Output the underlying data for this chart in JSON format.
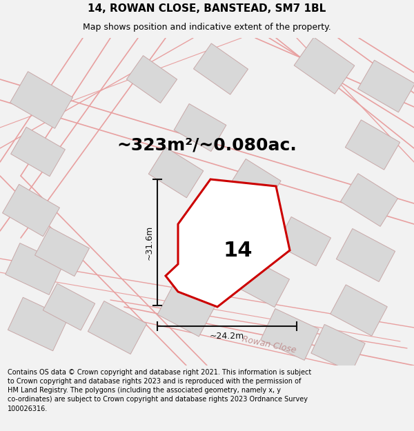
{
  "title": "14, ROWAN CLOSE, BANSTEAD, SM7 1BL",
  "subtitle": "Map shows position and indicative extent of the property.",
  "area_text": "~323m²/~0.080ac.",
  "label_14": "14",
  "dim_height": "~31.6m",
  "dim_width": "~24.2m",
  "road_label": "Rowan Close",
  "footer": "Contains OS data © Crown copyright and database right 2021. This information is subject to Crown copyright and database rights 2023 and is reproduced with the permission of HM Land Registry. The polygons (including the associated geometry, namely x, y co-ordinates) are subject to Crown copyright and database rights 2023 Ordnance Survey 100026316.",
  "bg_color": "#f2f2f2",
  "map_bg": "#ffffff",
  "plot_color": "#cc0000",
  "building_fc": "#d8d8d8",
  "building_ec": "#c8a8a8",
  "road_ec": "#e8a0a0",
  "dim_color": "#111111",
  "road_label_color": "#c09090",
  "title_fontsize": 11,
  "subtitle_fontsize": 9,
  "area_fontsize": 18,
  "label_fontsize": 22,
  "footer_fontsize": 7
}
